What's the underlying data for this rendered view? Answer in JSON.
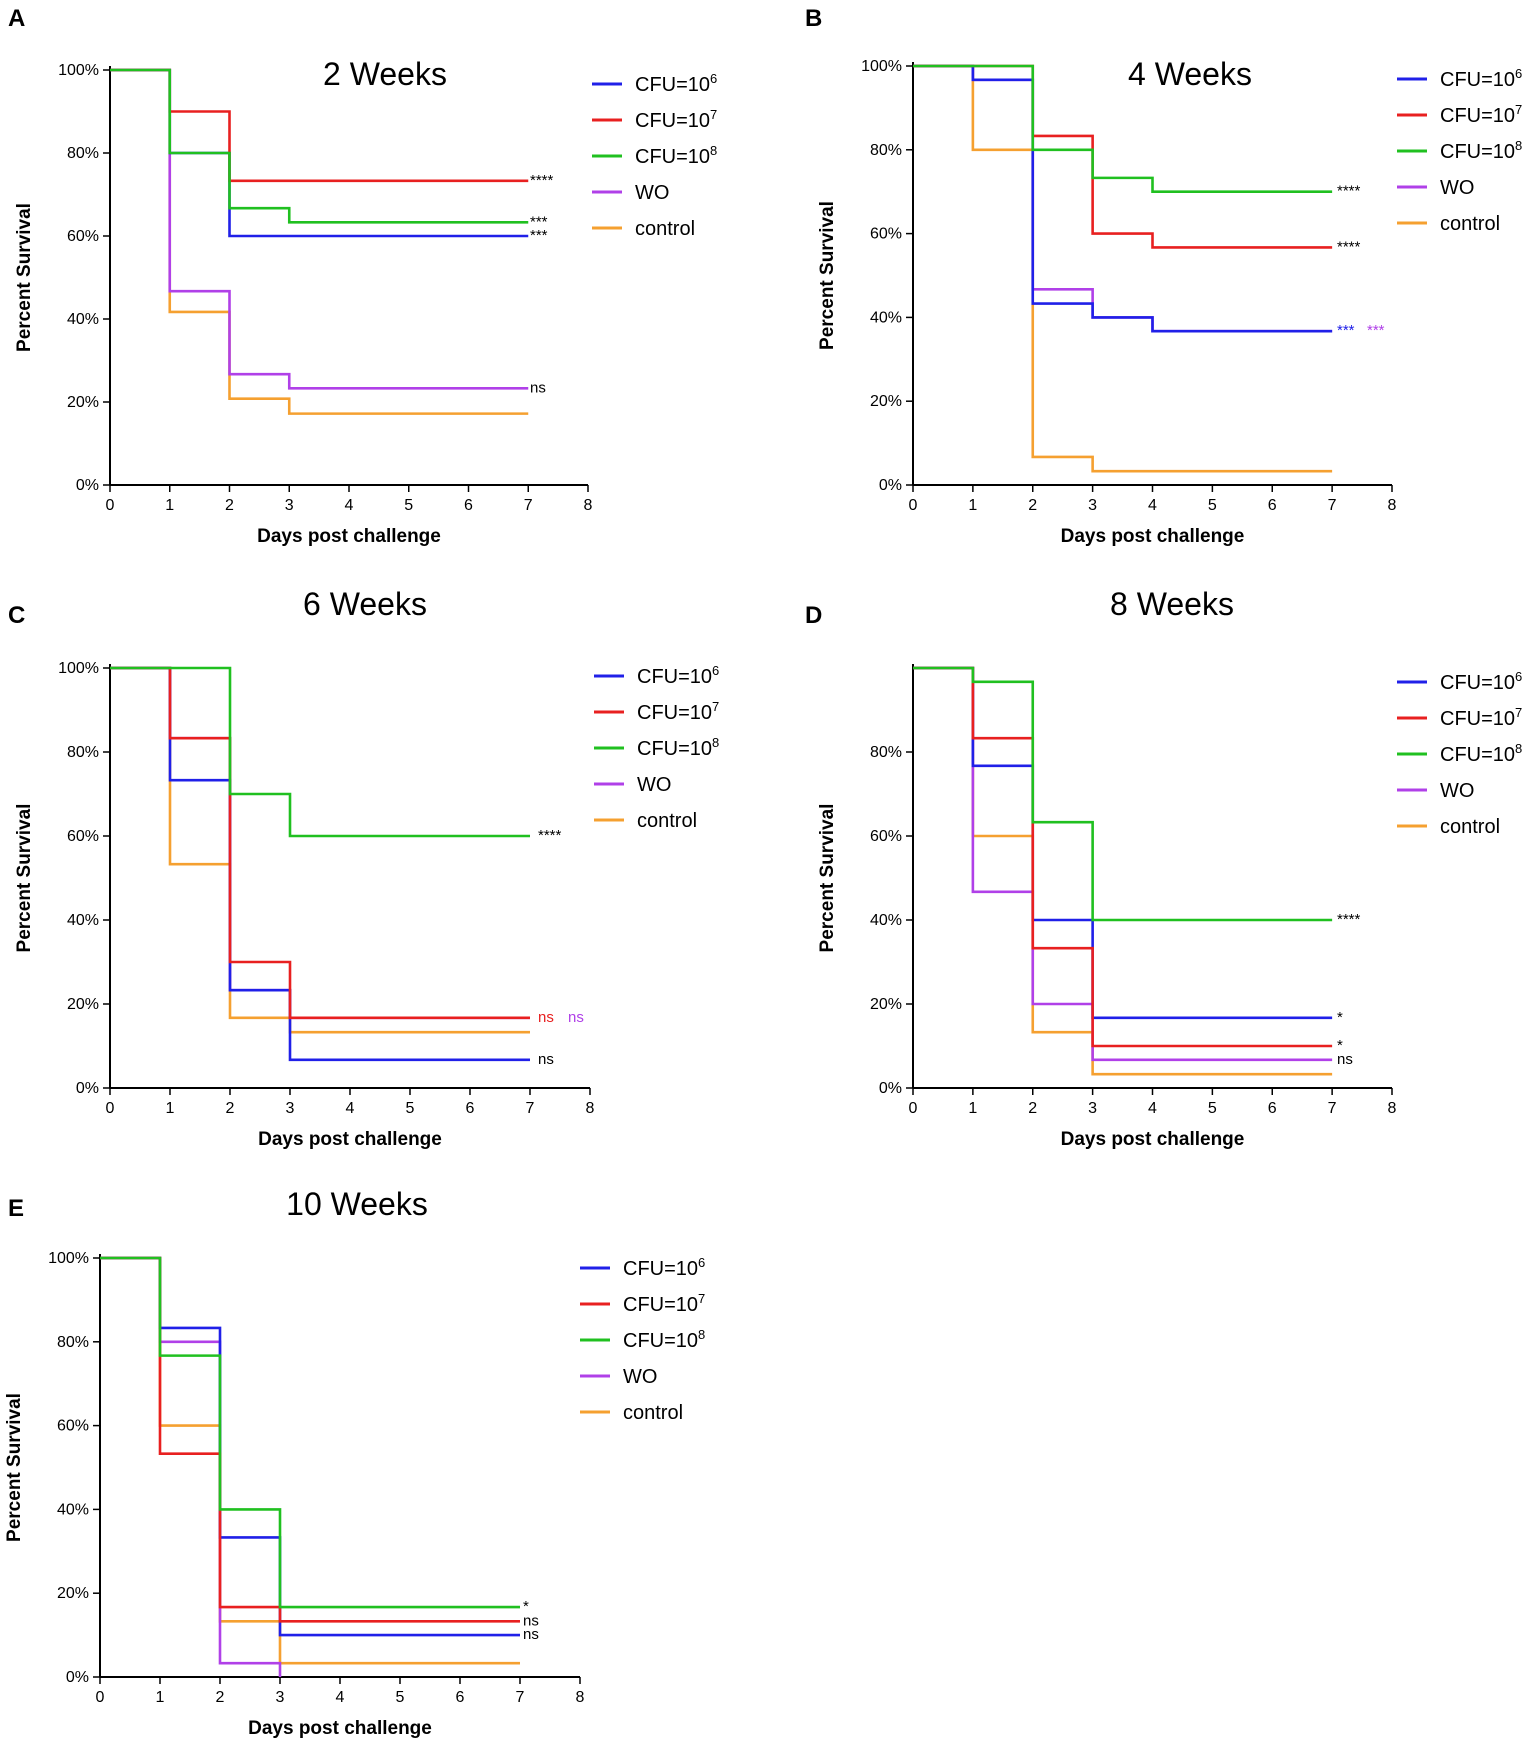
{
  "chart_data": [
    {
      "type": "line",
      "panel": "A",
      "title": "2 Weeks",
      "xlabel": "Days post challenge",
      "ylabel": "Percent Survival",
      "xlim": [
        0,
        8
      ],
      "ylim": [
        0,
        100
      ],
      "xticks": [
        "0",
        "1",
        "2",
        "3",
        "4",
        "5",
        "6",
        "7",
        "8"
      ],
      "yticks": [
        "0%",
        "20%",
        "40%",
        "60%",
        "80%",
        "100%"
      ],
      "legend": [
        {
          "label_main": "CFU=10",
          "label_sup": "6",
          "color": "#2020e8"
        },
        {
          "label_main": "CFU=10",
          "label_sup": "7",
          "color": "#e82020"
        },
        {
          "label_main": "CFU=10",
          "label_sup": "8",
          "color": "#20c020"
        },
        {
          "label_main": "WO",
          "label_sup": "",
          "color": "#b040e8"
        },
        {
          "label_main": "control",
          "label_sup": "",
          "color": "#f5a030"
        }
      ],
      "series": [
        {
          "name": "CFU=10^6",
          "color": "#2020e8",
          "x": [
            0,
            1,
            2,
            7
          ],
          "y": [
            100,
            80,
            60,
            60
          ]
        },
        {
          "name": "CFU=10^7",
          "color": "#e82020",
          "x": [
            0,
            1,
            2,
            7
          ],
          "y": [
            100,
            90,
            73.3,
            73.3
          ]
        },
        {
          "name": "CFU=10^8",
          "color": "#20c020",
          "x": [
            0,
            1,
            2,
            3,
            7
          ],
          "y": [
            100,
            80,
            66.7,
            63.3,
            63.3
          ]
        },
        {
          "name": "WO",
          "color": "#b040e8",
          "x": [
            0,
            1,
            2,
            3,
            7
          ],
          "y": [
            100,
            46.7,
            26.7,
            23.3,
            23.3
          ]
        },
        {
          "name": "control",
          "color": "#f5a030",
          "x": [
            0,
            1,
            2,
            3,
            7
          ],
          "y": [
            100,
            41.7,
            20.8,
            17.2,
            17.2
          ]
        }
      ],
      "annotations": [
        {
          "text": "****",
          "y": 73.3,
          "color": "#000000"
        },
        {
          "text": "***",
          "y": 63.3,
          "color": "#000000"
        },
        {
          "text": "***",
          "y": 60,
          "color": "#000000"
        },
        {
          "text": "ns",
          "y": 23.3,
          "color": "#000000"
        }
      ]
    },
    {
      "type": "line",
      "panel": "B",
      "title": "4 Weeks",
      "xlabel": "Days post challenge",
      "ylabel": "Percent Survival",
      "xlim": [
        0,
        8
      ],
      "ylim": [
        0,
        100
      ],
      "xticks": [
        "0",
        "1",
        "2",
        "3",
        "4",
        "5",
        "6",
        "7",
        "8"
      ],
      "yticks": [
        "0%",
        "20%",
        "40%",
        "60%",
        "80%",
        "100%"
      ],
      "legend": [
        {
          "label_main": "CFU=10",
          "label_sup": "6",
          "color": "#2020e8"
        },
        {
          "label_main": "CFU=10",
          "label_sup": "7",
          "color": "#e82020"
        },
        {
          "label_main": "CFU=10",
          "label_sup": "8",
          "color": "#20c020"
        },
        {
          "label_main": "WO",
          "label_sup": "",
          "color": "#b040e8"
        },
        {
          "label_main": "control",
          "label_sup": "",
          "color": "#f5a030"
        }
      ],
      "series": [
        {
          "name": "CFU=10^6",
          "color": "#2020e8",
          "x": [
            0,
            1,
            2,
            3,
            4,
            7
          ],
          "y": [
            100,
            96.7,
            43.3,
            40,
            36.7,
            36.7
          ]
        },
        {
          "name": "CFU=10^7",
          "color": "#e82020",
          "x": [
            0,
            1,
            2,
            3,
            4,
            7
          ],
          "y": [
            100,
            100,
            83.3,
            60,
            56.7,
            56.7
          ]
        },
        {
          "name": "CFU=10^8",
          "color": "#20c020",
          "x": [
            0,
            1,
            2,
            3,
            4,
            7
          ],
          "y": [
            100,
            100,
            80,
            73.3,
            70,
            70
          ]
        },
        {
          "name": "WO",
          "color": "#b040e8",
          "x": [
            0,
            1,
            2,
            3,
            4,
            7
          ],
          "y": [
            100,
            96.7,
            46.7,
            40,
            36.7,
            36.7
          ]
        },
        {
          "name": "control",
          "color": "#f5a030",
          "x": [
            0,
            1,
            2,
            3,
            7
          ],
          "y": [
            100,
            80,
            6.7,
            3.3,
            3.3
          ]
        }
      ],
      "annotations": [
        {
          "text": "****",
          "y": 70,
          "color": "#000000"
        },
        {
          "text": "****",
          "y": 56.7,
          "color": "#000000"
        },
        {
          "text": "***",
          "y": 36.7,
          "color": "#2020e8"
        },
        {
          "text": "***",
          "y": 36.7,
          "color": "#b040e8"
        }
      ]
    },
    {
      "type": "line",
      "panel": "C",
      "title": "6 Weeks",
      "xlabel": "Days post challenge",
      "ylabel": "Percent Survival",
      "xlim": [
        0,
        8
      ],
      "ylim": [
        0,
        100
      ],
      "xticks": [
        "0",
        "1",
        "2",
        "3",
        "4",
        "5",
        "6",
        "7",
        "8"
      ],
      "yticks": [
        "0%",
        "20%",
        "40%",
        "60%",
        "80%",
        "100%"
      ],
      "legend": [
        {
          "label_main": "CFU=10",
          "label_sup": "6",
          "color": "#2020e8"
        },
        {
          "label_main": "CFU=10",
          "label_sup": "7",
          "color": "#e82020"
        },
        {
          "label_main": "CFU=10",
          "label_sup": "8",
          "color": "#20c020"
        },
        {
          "label_main": "WO",
          "label_sup": "",
          "color": "#b040e8"
        },
        {
          "label_main": "control",
          "label_sup": "",
          "color": "#f5a030"
        }
      ],
      "series": [
        {
          "name": "CFU=10^6",
          "color": "#2020e8",
          "x": [
            0,
            1,
            2,
            3,
            7
          ],
          "y": [
            100,
            73.3,
            23.3,
            6.7,
            6.7
          ]
        },
        {
          "name": "CFU=10^7",
          "color": "#e82020",
          "x": [
            0,
            1,
            2,
            3,
            7
          ],
          "y": [
            100,
            83.3,
            30,
            16.7,
            16.7
          ]
        },
        {
          "name": "CFU=10^8",
          "color": "#20c020",
          "x": [
            0,
            1,
            2,
            3,
            7
          ],
          "y": [
            100,
            100,
            70,
            60,
            60
          ]
        },
        {
          "name": "WO",
          "color": "#b040e8",
          "x": [
            0,
            1,
            2,
            3,
            7
          ],
          "y": [
            100,
            83.3,
            23.3,
            16.7,
            16.7
          ]
        },
        {
          "name": "control",
          "color": "#f5a030",
          "x": [
            0,
            1,
            2,
            3,
            7
          ],
          "y": [
            100,
            53.3,
            16.7,
            13.3,
            13.3
          ]
        }
      ],
      "annotations": [
        {
          "text": "****",
          "y": 60,
          "color": "#000000"
        },
        {
          "text": "ns",
          "y": 16.7,
          "color": "#e82020"
        },
        {
          "text": "ns",
          "y": 16.7,
          "color": "#b040e8"
        },
        {
          "text": "ns",
          "y": 6.7,
          "color": "#000000"
        }
      ]
    },
    {
      "type": "line",
      "panel": "D",
      "title": "8 Weeks",
      "xlabel": "Days post challenge",
      "ylabel": "Percent Survival",
      "xlim": [
        0,
        8
      ],
      "ylim": [
        0,
        100
      ],
      "xticks": [
        "0",
        "1",
        "2",
        "3",
        "4",
        "5",
        "6",
        "7",
        "8"
      ],
      "yticks": [
        "0%",
        "20%",
        "40%",
        "60%",
        "80%"
      ],
      "legend": [
        {
          "label_main": "CFU=10",
          "label_sup": "6",
          "color": "#2020e8"
        },
        {
          "label_main": "CFU=10",
          "label_sup": "7",
          "color": "#e82020"
        },
        {
          "label_main": "CFU=10",
          "label_sup": "8",
          "color": "#20c020"
        },
        {
          "label_main": "WO",
          "label_sup": "",
          "color": "#b040e8"
        },
        {
          "label_main": "control",
          "label_sup": "",
          "color": "#f5a030"
        }
      ],
      "series": [
        {
          "name": "CFU=10^6",
          "color": "#2020e8",
          "x": [
            0,
            1,
            2,
            3,
            7
          ],
          "y": [
            100,
            76.7,
            40,
            16.7,
            16.7
          ]
        },
        {
          "name": "CFU=10^7",
          "color": "#e82020",
          "x": [
            0,
            1,
            2,
            3,
            7
          ],
          "y": [
            100,
            83.3,
            33.3,
            10,
            10
          ]
        },
        {
          "name": "CFU=10^8",
          "color": "#20c020",
          "x": [
            0,
            1,
            2,
            3,
            7
          ],
          "y": [
            100,
            96.7,
            63.3,
            40,
            40
          ]
        },
        {
          "name": "WO",
          "color": "#b040e8",
          "x": [
            0,
            1,
            2,
            3,
            7
          ],
          "y": [
            100,
            46.7,
            20,
            6.7,
            6.7
          ]
        },
        {
          "name": "control",
          "color": "#f5a030",
          "x": [
            0,
            1,
            2,
            3,
            7
          ],
          "y": [
            100,
            60,
            13.3,
            3.3,
            3.3
          ]
        }
      ],
      "annotations": [
        {
          "text": "****",
          "y": 40,
          "color": "#000000"
        },
        {
          "text": "*",
          "y": 16.7,
          "color": "#000000"
        },
        {
          "text": "*",
          "y": 10,
          "color": "#000000"
        },
        {
          "text": "ns",
          "y": 6.7,
          "color": "#000000"
        }
      ]
    },
    {
      "type": "line",
      "panel": "E",
      "title": "10 Weeks",
      "xlabel": "Days post challenge",
      "ylabel": "Percent Survival",
      "xlim": [
        0,
        8
      ],
      "ylim": [
        0,
        100
      ],
      "xticks": [
        "0",
        "1",
        "2",
        "3",
        "4",
        "5",
        "6",
        "7",
        "8"
      ],
      "yticks": [
        "0%",
        "20%",
        "40%",
        "60%",
        "80%",
        "100%"
      ],
      "legend": [
        {
          "label_main": "CFU=10",
          "label_sup": "6",
          "color": "#2020e8"
        },
        {
          "label_main": "CFU=10",
          "label_sup": "7",
          "color": "#e82020"
        },
        {
          "label_main": "CFU=10",
          "label_sup": "8",
          "color": "#20c020"
        },
        {
          "label_main": "WO",
          "label_sup": "",
          "color": "#b040e8"
        },
        {
          "label_main": "control",
          "label_sup": "",
          "color": "#f5a030"
        }
      ],
      "series": [
        {
          "name": "CFU=10^6",
          "color": "#2020e8",
          "x": [
            0,
            1,
            2,
            3,
            7
          ],
          "y": [
            100,
            83.3,
            33.3,
            10,
            10
          ]
        },
        {
          "name": "CFU=10^7",
          "color": "#e82020",
          "x": [
            0,
            1,
            2,
            3,
            7
          ],
          "y": [
            100,
            53.3,
            16.7,
            13.3,
            13.3
          ]
        },
        {
          "name": "CFU=10^8",
          "color": "#20c020",
          "x": [
            0,
            1,
            2,
            3,
            7
          ],
          "y": [
            100,
            76.7,
            40,
            16.7,
            16.7
          ]
        },
        {
          "name": "WO",
          "color": "#b040e8",
          "x": [
            0,
            1,
            2,
            3
          ],
          "y": [
            100,
            80,
            3.3,
            0
          ]
        },
        {
          "name": "control",
          "color": "#f5a030",
          "x": [
            0,
            1,
            2,
            3,
            7
          ],
          "y": [
            100,
            60,
            13.3,
            3.3,
            3.3
          ]
        }
      ],
      "annotations": [
        {
          "text": "*",
          "y": 16.7,
          "color": "#000000"
        },
        {
          "text": "ns",
          "y": 13.3,
          "color": "#000000"
        },
        {
          "text": "ns",
          "y": 10,
          "color": "#000000"
        }
      ]
    }
  ]
}
